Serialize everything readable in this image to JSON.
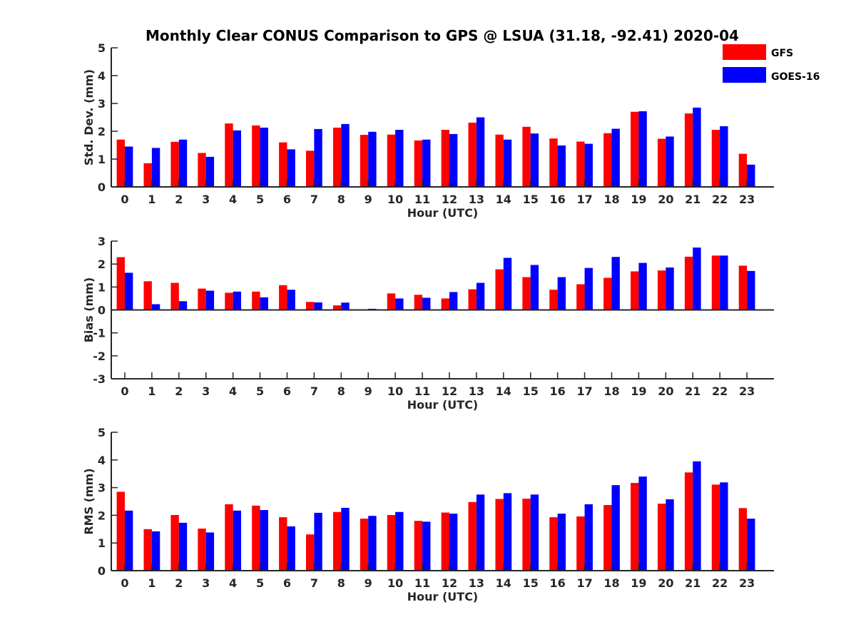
{
  "title": "Monthly Clear CONUS Comparison to GPS @ LSUA (31.18, -92.41) 2020-04",
  "colors": {
    "GFS": "#ff0000",
    "GOES-16": "#0000ff"
  },
  "chart_data": [
    {
      "type": "bar",
      "xlabel": "Hour (UTC)",
      "ylabel": "Std. Dev. (mm)",
      "ylim": [
        0,
        5
      ],
      "yticks": [
        0,
        1,
        2,
        3,
        4,
        5
      ],
      "categories": [
        "0",
        "1",
        "2",
        "3",
        "4",
        "5",
        "6",
        "7",
        "8",
        "9",
        "10",
        "11",
        "12",
        "13",
        "14",
        "15",
        "16",
        "17",
        "18",
        "19",
        "20",
        "21",
        "22",
        "23"
      ],
      "legend_position": "top-right",
      "series": [
        {
          "name": "GFS",
          "values": [
            1.7,
            0.85,
            1.62,
            1.22,
            2.28,
            2.21,
            1.6,
            1.3,
            2.13,
            1.87,
            1.88,
            1.67,
            2.05,
            2.31,
            1.88,
            2.16,
            1.74,
            1.63,
            1.93,
            2.7,
            1.73,
            2.64,
            2.05,
            1.19
          ]
        },
        {
          "name": "GOES-16",
          "values": [
            1.45,
            1.4,
            1.7,
            1.08,
            2.03,
            2.13,
            1.35,
            2.08,
            2.26,
            1.98,
            2.05,
            1.7,
            1.9,
            2.5,
            1.7,
            1.92,
            1.49,
            1.55,
            2.09,
            2.72,
            1.81,
            2.85,
            2.18,
            0.8
          ]
        }
      ]
    },
    {
      "type": "bar",
      "xlabel": "Hour (UTC)",
      "ylabel": "Bias (mm)",
      "ylim": [
        -3,
        3
      ],
      "yticks": [
        -3,
        -2,
        -1,
        0,
        1,
        2,
        3
      ],
      "categories": [
        "0",
        "1",
        "2",
        "3",
        "4",
        "5",
        "6",
        "7",
        "8",
        "9",
        "10",
        "11",
        "12",
        "13",
        "14",
        "15",
        "16",
        "17",
        "18",
        "19",
        "20",
        "21",
        "22",
        "23"
      ],
      "series": [
        {
          "name": "GFS",
          "values": [
            2.3,
            1.25,
            1.18,
            0.93,
            0.75,
            0.8,
            1.08,
            0.35,
            0.2,
            -0.03,
            0.72,
            0.66,
            0.5,
            0.9,
            1.77,
            1.43,
            0.88,
            1.12,
            1.4,
            1.68,
            1.72,
            2.32,
            2.37,
            1.93
          ]
        },
        {
          "name": "GOES-16",
          "values": [
            1.62,
            0.25,
            0.38,
            0.84,
            0.8,
            0.55,
            0.88,
            0.33,
            0.32,
            0.05,
            0.5,
            0.53,
            0.78,
            1.18,
            2.27,
            1.96,
            1.43,
            1.83,
            2.31,
            2.05,
            1.85,
            2.72,
            2.37,
            1.7
          ]
        }
      ]
    },
    {
      "type": "bar",
      "xlabel": "Hour (UTC)",
      "ylabel": "RMS (mm)",
      "ylim": [
        0,
        5
      ],
      "yticks": [
        0,
        1,
        2,
        3,
        4,
        5
      ],
      "categories": [
        "0",
        "1",
        "2",
        "3",
        "4",
        "5",
        "6",
        "7",
        "8",
        "9",
        "10",
        "11",
        "12",
        "13",
        "14",
        "15",
        "16",
        "17",
        "18",
        "19",
        "20",
        "21",
        "22",
        "23"
      ],
      "series": [
        {
          "name": "GFS",
          "values": [
            2.85,
            1.5,
            2.01,
            1.52,
            2.4,
            2.35,
            1.93,
            1.31,
            2.12,
            1.88,
            2.01,
            1.8,
            2.1,
            2.48,
            2.59,
            2.6,
            1.93,
            1.96,
            2.37,
            3.17,
            2.42,
            3.55,
            3.11,
            2.26
          ]
        },
        {
          "name": "GOES-16",
          "values": [
            2.17,
            1.42,
            1.73,
            1.38,
            2.17,
            2.19,
            1.6,
            2.09,
            2.27,
            1.98,
            2.12,
            1.77,
            2.06,
            2.75,
            2.8,
            2.75,
            2.06,
            2.4,
            3.09,
            3.4,
            2.58,
            3.95,
            3.19,
            1.88
          ]
        }
      ]
    }
  ]
}
